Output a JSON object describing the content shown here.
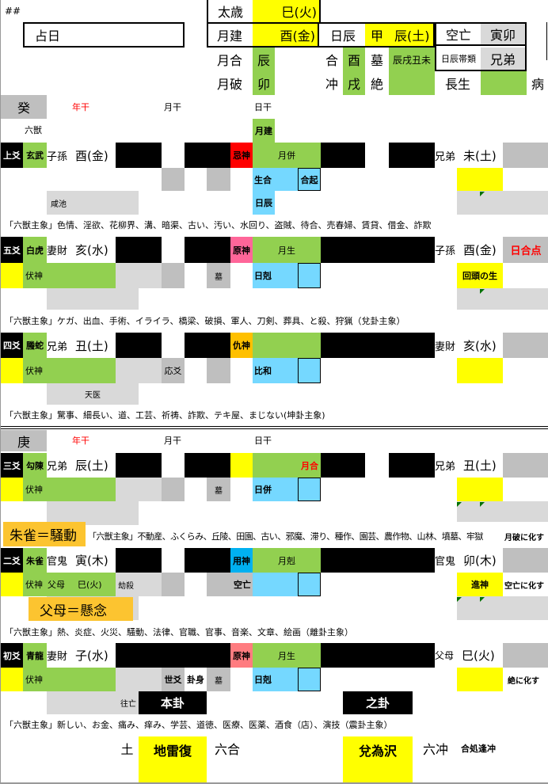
{
  "header": {
    "hash": "##",
    "date_label": "占日",
    "taisai_label": "太歳",
    "taisai": "巳(火)",
    "gekken_label": "月建",
    "gekken": "酉(金)",
    "nisshin_label": "日辰",
    "nisshin_stem": "甲",
    "nisshin": "辰(土)",
    "kubo_label": "空亡",
    "kubo": "寅卯",
    "getsugo_label": "月合",
    "getsugo": "辰",
    "gou_label": "合",
    "gou": "酉",
    "bo_label": "墓",
    "bo": "辰戌丑未",
    "taisetsu_label": "日辰帯類",
    "taisetsu": "兄弟",
    "geppa_label": "月破",
    "geppa": "卯",
    "chu_label": "冲",
    "chu": "戌",
    "zetsu_label": "絶",
    "chosei_label": "長生",
    "byo_label": "病"
  },
  "upper": {
    "stem": "癸",
    "nenkan": "年干",
    "gekkan": "月干",
    "nikkan": "日干",
    "rokuju": "六獣",
    "gekken_mark": "月建"
  },
  "lower": {
    "stem": "庚",
    "nenkan": "年干",
    "gekkan": "月干",
    "nikkan": "日干"
  },
  "lines": [
    {
      "pos": "上爻",
      "beast": "玄武",
      "rel": "子孫",
      "branch": "酉(金)",
      "god": "忌神",
      "month": "月併",
      "day": "生合",
      "box": "合起",
      "day2": "日辰",
      "star": "咸池",
      "crel": "兄弟",
      "cbranch": "未(土)",
      "note": "「六獣主象」色情、淫欲、花柳界、溝、暗渠、古い、汚い、水回り、盗賊、待合、売春婦、賃貸、借金、詐欺"
    },
    {
      "pos": "五爻",
      "beast": "白虎",
      "rel": "妻財",
      "branch": "亥(水)",
      "god": "原神",
      "month": "月生",
      "fushin": "伏神",
      "grave": "墓",
      "day": "日剋",
      "crel": "子孫",
      "cbranch": "酉(金)",
      "cright": "日合点",
      "change": "回頭の生",
      "note": "「六獣主象」ケガ、出血、手術、イライラ、橋梁、破損、軍人、刀剣、葬具、と殺、狩猟（兌卦主象）"
    },
    {
      "pos": "四爻",
      "beast": "螣蛇",
      "rel": "兄弟",
      "branch": "丑(土)",
      "god": "仇神",
      "fushin": "伏神",
      "ou": "応爻",
      "day": "比和",
      "star": "天医",
      "crel": "妻財",
      "cbranch": "亥(水)",
      "note": "「六獣主象」驚事、細長い、道、工芸、祈祷、詐欺、テキ屋、まじない(坤卦主象)"
    },
    {
      "pos": "三爻",
      "beast": "勾陳",
      "rel": "兄弟",
      "branch": "辰(土)",
      "month": "月合",
      "fushin": "伏神",
      "grave": "墓",
      "day": "日併",
      "crel": "兄弟",
      "cbranch": "丑(土)",
      "note": "「六獣主象」不動産、ふくらみ、丘陵、田園、古い、邪魔、滞り、種作、園芸、農作物、山林、墳墓、牢獄",
      "cnote": "月破に化す",
      "overlay": "朱雀＝騒動"
    },
    {
      "pos": "二爻",
      "beast": "朱雀",
      "rel": "官鬼",
      "branch": "寅(木)",
      "god": "用神",
      "month": "月剋",
      "fushin": "伏神",
      "frel": "父母",
      "fbranch": "巳(火)",
      "star": "劫殺",
      "kubo": "空亡",
      "crel": "官鬼",
      "cbranch": "卯(木)",
      "change": "進神",
      "cnote": "空亡に化す",
      "overlay": "父母＝懸念",
      "note": "「六獣主象」熱、炎症、火災、騒動、法律、官職、官事、音楽、文章、絵画（離卦主象）"
    },
    {
      "pos": "初爻",
      "beast": "青龍",
      "rel": "妻財",
      "branch": "子(水)",
      "god": "原神",
      "month": "月生",
      "fushin": "伏神",
      "se": "世爻",
      "kashin": "卦身",
      "grave": "墓",
      "day": "日剋",
      "star": "往亡",
      "crel": "父母",
      "cbranch": "巳(火)",
      "cnote": "絶に化す",
      "note": "「六獣主象」新しい、お金、痛み、痒み、学芸、道徳、医療、医薬、酒食（店）、演技（震卦主象）"
    }
  ],
  "footer": {
    "honke_label": "本卦",
    "shike_label": "之卦",
    "element": "土",
    "honke": "地雷復",
    "honke_type": "六合",
    "shike": "兌為沢",
    "shike_type": "六冲",
    "summary": "合処逢冲"
  },
  "colors": {
    "green": "#92d050",
    "yellow": "#ffff00",
    "blue": "#75d8ff",
    "kishin": "#ff0000",
    "genshin": "#ff6699",
    "kyushin": "#ffc000",
    "yojin": "#00b0f0"
  }
}
